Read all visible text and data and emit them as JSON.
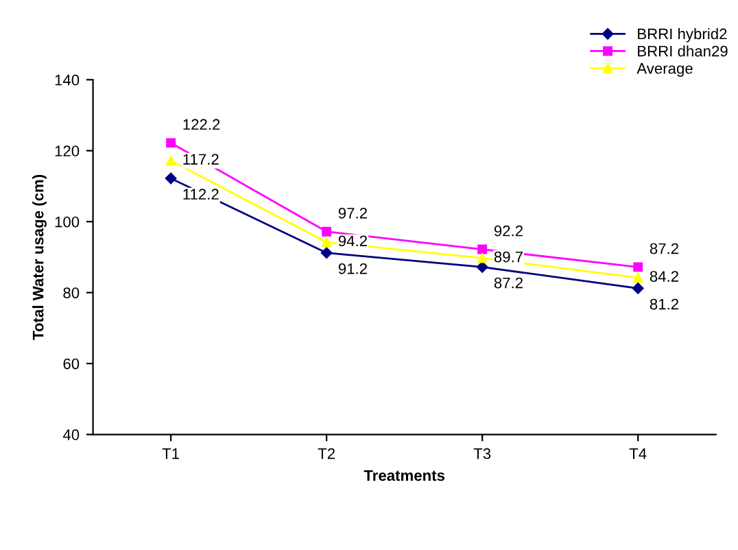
{
  "chart_data": {
    "type": "line",
    "xlabel": "Treatments",
    "ylabel": "Total Water usage (cm)",
    "categories": [
      "T1",
      "T2",
      "T3",
      "T4"
    ],
    "series": [
      {
        "name": "BRRI hybrid2",
        "color": "#000080",
        "marker": "diamond",
        "values": [
          112.2,
          91.2,
          87.2,
          81.2
        ]
      },
      {
        "name": "BRRI dhan29",
        "color": "#ff00ff",
        "marker": "square",
        "values": [
          122.2,
          97.2,
          92.2,
          87.2
        ]
      },
      {
        "name": "Average",
        "color": "#ffff00",
        "marker": "triangle",
        "values": [
          117.2,
          94.2,
          89.7,
          84.2
        ]
      }
    ],
    "ylim": [
      40,
      140
    ],
    "yticks": [
      40,
      60,
      80,
      100,
      120,
      140
    ],
    "grid": false,
    "legend": "top right",
    "data_labels": true
  }
}
